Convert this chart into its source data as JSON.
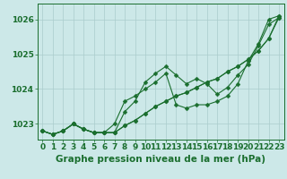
{
  "title": "Graphe pression niveau de la mer (hPa)",
  "bg_color": "#cce8e8",
  "grid_color": "#aacccc",
  "line_color": "#1a6e2e",
  "xlim": [
    -0.5,
    23.5
  ],
  "ylim": [
    1022.55,
    1026.45
  ],
  "yticks": [
    1023,
    1024,
    1025,
    1026
  ],
  "xticks": [
    0,
    1,
    2,
    3,
    4,
    5,
    6,
    7,
    8,
    9,
    10,
    11,
    12,
    13,
    14,
    15,
    16,
    17,
    18,
    19,
    20,
    21,
    22,
    23
  ],
  "s1": [
    1022.8,
    1022.7,
    1022.8,
    1023.0,
    1022.85,
    1022.75,
    1022.75,
    1022.75,
    1023.35,
    1023.65,
    1024.2,
    1024.45,
    1024.65,
    1024.4,
    1024.15,
    1024.3,
    1024.15,
    1023.85,
    1024.05,
    1024.4,
    1024.7,
    1025.25,
    1025.85,
    1026.05
  ],
  "s2": [
    1022.8,
    1022.7,
    1022.8,
    1023.0,
    1022.85,
    1022.75,
    1022.75,
    1023.0,
    1023.65,
    1023.8,
    1024.0,
    1024.2,
    1024.45,
    1023.55,
    1023.45,
    1023.55,
    1023.55,
    1023.65,
    1023.8,
    1024.15,
    1024.8,
    1025.3,
    1026.0,
    1026.1
  ],
  "s3": [
    1022.8,
    1022.7,
    1022.8,
    1023.0,
    1022.85,
    1022.75,
    1022.75,
    1022.75,
    1022.95,
    1023.1,
    1023.3,
    1023.5,
    1023.65,
    1023.8,
    1023.9,
    1024.05,
    1024.2,
    1024.3,
    1024.5,
    1024.65,
    1024.85,
    1025.1,
    1025.45,
    1026.05
  ],
  "s4": [
    1022.8,
    1022.7,
    1022.8,
    1023.0,
    1022.85,
    1022.75,
    1022.75,
    1022.75,
    1022.95,
    1023.1,
    1023.3,
    1023.5,
    1023.65,
    1023.8,
    1023.9,
    1024.05,
    1024.2,
    1024.3,
    1024.5,
    1024.65,
    1024.85,
    1025.1,
    1025.45,
    1026.1
  ],
  "tick_fontsize": 6.5,
  "title_fontsize": 7.5,
  "lw": 0.8,
  "ms": 2.5
}
